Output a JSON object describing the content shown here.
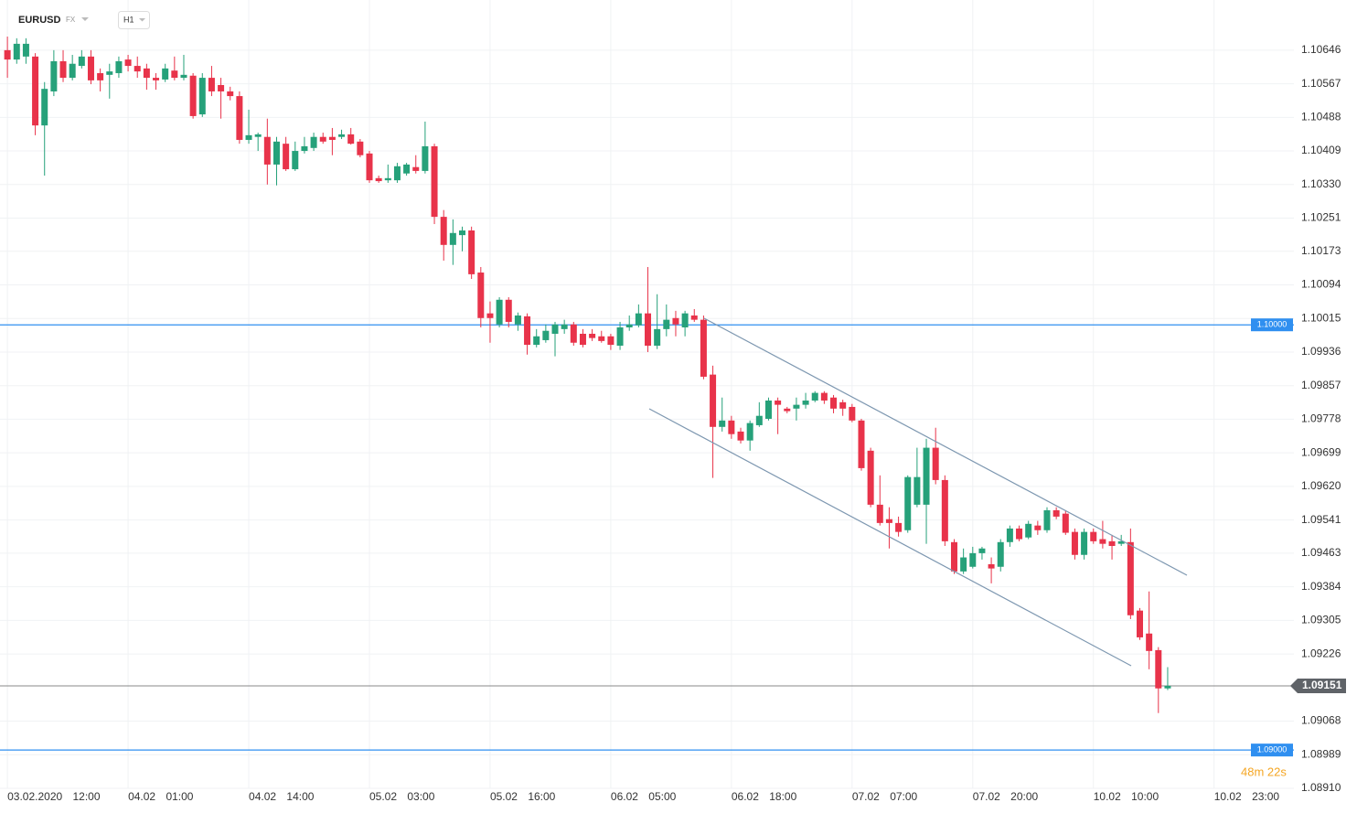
{
  "chart_data": {
    "type": "candlestick",
    "symbol": "EURUSD",
    "market": "FX",
    "timeframe": "H1",
    "countdown": "48m 22s",
    "up_color": "#26a17a",
    "down_color": "#e8334a",
    "grid": true,
    "ylim": [
      1.0891,
      1.10764
    ],
    "yticks": [
      1.10646,
      1.10567,
      1.10488,
      1.10409,
      {
        "value": 1.1033,
        "label": "1.10330"
      },
      1.10251,
      1.10173,
      1.10094,
      1.10015,
      1.09936,
      1.09857,
      1.09778,
      1.09699,
      {
        "value": 1.0962,
        "label": "1.09620"
      },
      1.09541,
      1.09463,
      1.09384,
      1.09305,
      1.09226,
      1.09068,
      1.08989,
      {
        "value": 1.0891,
        "label": "1.08910"
      }
    ],
    "xlim": [
      -0.8,
      138.6
    ],
    "xticks": [
      {
        "value": 0,
        "label": "03.02.2020 12:00"
      },
      {
        "value": 13,
        "label": "04.02 01:00"
      },
      {
        "value": 26,
        "label": "04.02 14:00"
      },
      {
        "value": 39,
        "label": "05.02 03:00"
      },
      {
        "value": 52,
        "label": "05.02 16:00"
      },
      {
        "value": 65,
        "label": "06.02 05:00"
      },
      {
        "value": 78,
        "label": "06.02 18:00"
      },
      {
        "value": 91,
        "label": "07.02 07:00"
      },
      {
        "value": 104,
        "label": "07.02 20:00"
      },
      {
        "value": 117,
        "label": "10.02 10:00"
      },
      {
        "value": 130,
        "label": "10.02 23:00"
      }
    ],
    "hlines": [
      {
        "value": 1.1,
        "label": "1.10000",
        "color": "#2f8ff0"
      },
      {
        "value": 1.09,
        "label": "1.09000",
        "color": "#2f8ff0"
      }
    ],
    "last_price": 1.09151,
    "ohlc": [
      [
        1.10646,
        1.10678,
        1.10581,
        1.10624
      ],
      [
        1.10624,
        1.10674,
        1.10614,
        1.10661
      ],
      [
        1.10631,
        1.10674,
        1.10614,
        1.10661
      ],
      [
        1.10631,
        1.10639,
        1.10446,
        1.10469
      ],
      [
        1.10469,
        1.10571,
        1.10351,
        1.10555
      ],
      [
        1.10549,
        1.10646,
        1.10538,
        1.1062
      ],
      [
        1.1062,
        1.10646,
        1.10571,
        1.10581
      ],
      [
        1.10581,
        1.10635,
        1.10575,
        1.10614
      ],
      [
        1.10609,
        1.10646,
        1.10603,
        1.10631
      ],
      [
        1.10631,
        1.10646,
        1.10566,
        1.10575
      ],
      [
        1.10592,
        1.10603,
        1.10549,
        1.10575
      ],
      [
        1.10588,
        1.10614,
        1.10532,
        1.10596
      ],
      [
        1.10592,
        1.10631,
        1.10581,
        1.1062
      ],
      [
        1.10624,
        1.10635,
        1.10596,
        1.10609
      ],
      [
        1.10609,
        1.10631,
        1.10581,
        1.10596
      ],
      [
        1.10603,
        1.10614,
        1.10553,
        1.10581
      ],
      [
        1.10581,
        1.10592,
        1.10553,
        1.10575
      ],
      [
        1.10577,
        1.10614,
        1.10571,
        1.10603
      ],
      [
        1.10598,
        1.10631,
        1.10575,
        1.10581
      ],
      [
        1.10581,
        1.10635,
        1.10575,
        1.10588
      ],
      [
        1.10586,
        1.10592,
        1.10485,
        1.10491
      ],
      [
        1.10495,
        1.10592,
        1.10489,
        1.10581
      ],
      [
        1.10581,
        1.10609,
        1.10538,
        1.10549
      ],
      [
        1.10564,
        1.10581,
        1.10485,
        1.10549
      ],
      [
        1.10549,
        1.1056,
        1.10528,
        1.10538
      ],
      [
        1.10538,
        1.10549,
        1.10426,
        1.10435
      ],
      [
        1.10435,
        1.10506,
        1.10426,
        1.10446
      ],
      [
        1.10442,
        1.10452,
        1.10409,
        1.10448
      ],
      [
        1.10442,
        1.10485,
        1.1033,
        1.10377
      ],
      [
        1.10377,
        1.10442,
        1.10328,
        1.10431
      ],
      [
        1.10426,
        1.10442,
        1.10362,
        1.10366
      ],
      [
        1.10366,
        1.10431,
        1.10362,
        1.10409
      ],
      [
        1.10409,
        1.10442,
        1.10403,
        1.1042
      ],
      [
        1.10416,
        1.10452,
        1.10409,
        1.10442
      ],
      [
        1.10442,
        1.10452,
        1.10426,
        1.10431
      ],
      [
        1.10442,
        1.10463,
        1.10399,
        1.10435
      ],
      [
        1.10442,
        1.10459,
        1.10437,
        1.10448
      ],
      [
        1.10448,
        1.10463,
        1.10424,
        1.10426
      ],
      [
        1.10431,
        1.10437,
        1.10394,
        1.10399
      ],
      [
        1.10403,
        1.10409,
        1.10334,
        1.1034
      ],
      [
        1.10345,
        1.10351,
        1.10334,
        1.10338
      ],
      [
        1.1034,
        1.10377,
        1.10334,
        1.10345
      ],
      [
        1.1034,
        1.10381,
        1.10334,
        1.10373
      ],
      [
        1.10356,
        1.10381,
        1.10351,
        1.10377
      ],
      [
        1.10371,
        1.10399,
        1.10356,
        1.10362
      ],
      [
        1.10362,
        1.10478,
        1.10356,
        1.1042
      ],
      [
        1.1042,
        1.10426,
        1.10237,
        1.10254
      ],
      [
        1.10254,
        1.1027,
        1.10151,
        1.10188
      ],
      [
        1.10188,
        1.10248,
        1.10141,
        1.10216
      ],
      [
        1.10211,
        1.10231,
        1.10173,
        1.10222
      ],
      [
        1.10222,
        1.10231,
        1.10108,
        1.10119
      ],
      [
        1.10123,
        1.10136,
        1.09994,
        1.10016
      ],
      [
        1.10027,
        1.10055,
        1.09958,
        1.10016
      ],
      [
        1.10001,
        1.10065,
        1.09994,
        1.10059
      ],
      [
        1.10059,
        1.10065,
        1.09994,
        1.10007
      ],
      [
        1.10001,
        1.10029,
        1.09986,
        1.10022
      ],
      [
        1.1002,
        1.10027,
        1.0993,
        1.09953
      ],
      [
        1.09953,
        1.0999,
        1.09947,
        1.09973
      ],
      [
        1.09964,
        1.10001,
        1.09958,
        1.09986
      ],
      [
        1.09979,
        1.10007,
        1.09926,
        1.10001
      ],
      [
        1.0999,
        1.10012,
        1.09979,
        1.10001
      ],
      [
        1.10001,
        1.10007,
        1.09951,
        1.09958
      ],
      [
        1.09979,
        1.0999,
        1.09947,
        1.09953
      ],
      [
        1.09979,
        1.0999,
        1.09962,
        1.09969
      ],
      [
        1.09973,
        1.09986,
        1.09958,
        1.09962
      ],
      [
        1.09973,
        1.09979,
        1.09941,
        1.09953
      ],
      [
        1.09951,
        1.10007,
        1.09941,
        1.09994
      ],
      [
        1.09994,
        1.10022,
        1.09986,
        1.10001
      ],
      [
        1.09999,
        1.10048,
        1.09994,
        1.10027
      ],
      [
        1.10027,
        1.10136,
        1.09936,
        1.09951
      ],
      [
        1.09951,
        1.10072,
        1.09943,
        1.0999
      ],
      [
        1.0999,
        1.10048,
        1.09973,
        1.10012
      ],
      [
        1.10016,
        1.10033,
        1.09973,
        1.10001
      ],
      [
        1.09994,
        1.10033,
        1.09973,
        1.10027
      ],
      [
        1.10022,
        1.10037,
        1.10007,
        1.10012
      ],
      [
        1.10012,
        1.10022,
        1.09872,
        1.09878
      ],
      [
        1.09883,
        1.09904,
        1.0964,
        1.0976
      ],
      [
        1.0976,
        1.09829,
        1.09749,
        1.09775
      ],
      [
        1.09775,
        1.09786,
        1.09732,
        1.09743
      ],
      [
        1.09749,
        1.09758,
        1.09721,
        1.09728
      ],
      [
        1.09728,
        1.09775,
        1.09704,
        1.09769
      ],
      [
        1.09764,
        1.09818,
        1.0976,
        1.09786
      ],
      [
        1.09779,
        1.09829,
        1.09775,
        1.09822
      ],
      [
        1.09822,
        1.09829,
        1.09743,
        1.09812
      ],
      [
        1.09803,
        1.09807,
        1.09792,
        1.09797
      ],
      [
        1.09803,
        1.09829,
        1.09775,
        1.09812
      ],
      [
        1.09812,
        1.0984,
        1.09803,
        1.09822
      ],
      [
        1.09822,
        1.09844,
        1.09818,
        1.0984
      ],
      [
        1.0984,
        1.09844,
        1.09814,
        1.09822
      ],
      [
        1.09829,
        1.09835,
        1.09792,
        1.09803
      ],
      [
        1.09818,
        1.09824,
        1.09786,
        1.09803
      ],
      [
        1.09807,
        1.09814,
        1.09771,
        1.09775
      ],
      [
        1.09775,
        1.09779,
        1.09657,
        1.09663
      ],
      [
        1.09704,
        1.09711,
        1.09571,
        1.09577
      ],
      [
        1.09577,
        1.09646,
        1.09528,
        1.09534
      ],
      [
        1.09543,
        1.09571,
        1.09474,
        1.09534
      ],
      [
        1.09534,
        1.09549,
        1.09502,
        1.09513
      ],
      [
        1.09517,
        1.09646,
        1.09511,
        1.09642
      ],
      [
        1.09577,
        1.09711,
        1.09571,
        1.09642
      ],
      [
        1.09577,
        1.09732,
        1.09485,
        1.09711
      ],
      [
        1.09711,
        1.09758,
        1.09625,
        1.09635
      ],
      [
        1.09635,
        1.09646,
        1.0948,
        1.09491
      ],
      [
        1.09489,
        1.09496,
        1.09414,
        1.0942
      ],
      [
        1.0942,
        1.09474,
        1.09414,
        1.09453
      ],
      [
        1.09431,
        1.09478,
        1.09427,
        1.09463
      ],
      [
        1.09463,
        1.09478,
        1.09448,
        1.09474
      ],
      [
        1.09437,
        1.09453,
        1.09392,
        1.09427
      ],
      [
        1.09431,
        1.09496,
        1.0942,
        1.09489
      ],
      [
        1.09489,
        1.09528,
        1.09478,
        1.09521
      ],
      [
        1.09521,
        1.09528,
        1.09491,
        1.09496
      ],
      [
        1.095,
        1.09539,
        1.09496,
        1.09532
      ],
      [
        1.09528,
        1.09539,
        1.09506,
        1.09517
      ],
      [
        1.09517,
        1.09571,
        1.09511,
        1.09564
      ],
      [
        1.09564,
        1.09571,
        1.09543,
        1.09549
      ],
      [
        1.09556,
        1.09564,
        1.09506,
        1.09511
      ],
      [
        1.09513,
        1.09521,
        1.09448,
        1.09459
      ],
      [
        1.09459,
        1.09521,
        1.09448,
        1.09513
      ],
      [
        1.09513,
        1.09521,
        1.09485,
        1.09491
      ],
      [
        1.09496,
        1.09539,
        1.09474,
        1.09485
      ],
      [
        1.09491,
        1.09506,
        1.09448,
        1.0948
      ],
      [
        1.09485,
        1.09506,
        1.0948,
        1.09491
      ],
      [
        1.09489,
        1.09521,
        1.09308,
        1.09317
      ],
      [
        1.09328,
        1.09334,
        1.09259,
        1.09265
      ],
      [
        1.09274,
        1.09373,
        1.0919,
        1.09233
      ],
      [
        1.09235,
        1.09242,
        1.09087,
        1.09145
      ],
      [
        1.09145,
        1.09195,
        1.09141,
        1.09151
      ]
    ]
  }
}
